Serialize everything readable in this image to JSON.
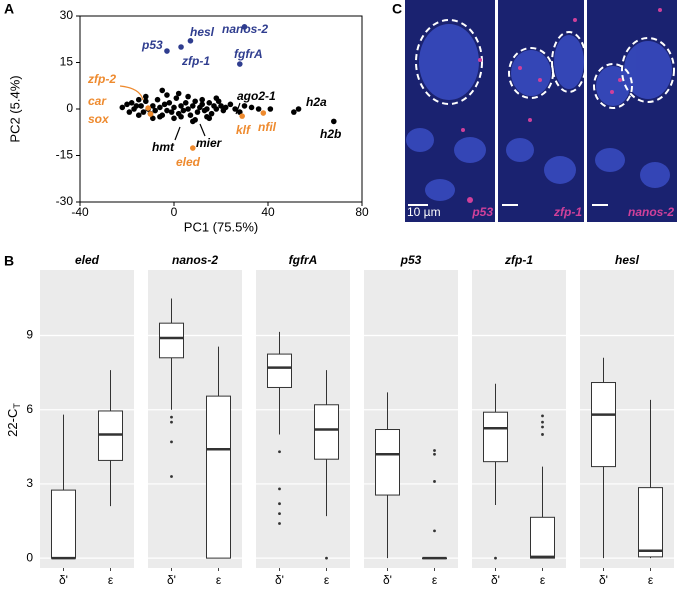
{
  "chart_data": [
    {
      "type": "scatter",
      "panel": "A",
      "xlabel": "PC1 (75.5%)",
      "ylabel": "PC2 (5.4%)",
      "xlim": [
        -40,
        80
      ],
      "ylim": [
        -30,
        30
      ],
      "xticks": [
        -40,
        0,
        40,
        80
      ],
      "yticks": [
        -30,
        -15,
        0,
        15,
        30
      ],
      "series": [
        {
          "color": "#000000",
          "x": [
            -22,
            -20,
            -19,
            -18,
            -17,
            -16,
            -15,
            -14,
            -13,
            -12,
            -11,
            -10,
            -9,
            -8,
            -7,
            -6,
            -5,
            -4,
            -3,
            -2,
            -1,
            0,
            1,
            2,
            3,
            4,
            5,
            6,
            7,
            8,
            9,
            10,
            11,
            12,
            13,
            14,
            15,
            16,
            17,
            18,
            19,
            20,
            21,
            22,
            24,
            26,
            28,
            30,
            33,
            36,
            -15,
            -12,
            -9,
            -6,
            -3,
            0,
            3,
            6,
            9,
            12,
            15,
            18,
            -5,
            2,
            8,
            14,
            41,
            51,
            53,
            68
          ],
          "y": [
            0.5,
            1.5,
            -1,
            2,
            0,
            1,
            -2,
            1,
            -1,
            2.5,
            0,
            -1.5,
            1,
            -0.5,
            3,
            0.5,
            -2,
            1.5,
            -0.5,
            2,
            -1,
            0.5,
            3.5,
            -1.5,
            1,
            -0.5,
            2,
            0,
            -2,
            1,
            2.5,
            -1,
            0.5,
            1.5,
            -0.5,
            0,
            2,
            -1.5,
            1,
            0,
            2.5,
            1,
            -0.5,
            0.5,
            1.5,
            0,
            -1,
            1,
            0.5,
            0,
            3,
            4,
            -3,
            -2.5,
            4.5,
            -3,
            -2.5,
            4,
            -3.5,
            3,
            -3,
            3.5,
            6,
            5,
            -4,
            -2.5,
            0,
            -1,
            0,
            -4
          ]
        },
        {
          "color": "#ee8a2e",
          "x": [
            -11,
            -10,
            29,
            38,
            8
          ],
          "y": [
            0.3,
            -1.6,
            -2.3,
            -1.3,
            -12.6
          ]
        },
        {
          "color": "#2f3d8f",
          "x": [
            -3,
            3,
            7,
            30,
            28
          ],
          "y": [
            18.7,
            20,
            22,
            26.5,
            14.5
          ]
        }
      ],
      "annotations": [
        {
          "text": "p53",
          "color": "#2f3d8f"
        },
        {
          "text": "hesl",
          "color": "#2f3d8f"
        },
        {
          "text": "nanos-2",
          "color": "#2f3d8f"
        },
        {
          "text": "zfp-1",
          "color": "#2f3d8f"
        },
        {
          "text": "fgfrA",
          "color": "#2f3d8f"
        },
        {
          "text": "zfp-2",
          "color": "#ee8a2e"
        },
        {
          "text": "car",
          "color": "#ee8a2e"
        },
        {
          "text": "sox",
          "color": "#ee8a2e"
        },
        {
          "text": "klf",
          "color": "#ee8a2e"
        },
        {
          "text": "nfil",
          "color": "#ee8a2e"
        },
        {
          "text": "eled",
          "color": "#ee8a2e"
        },
        {
          "text": "hmt",
          "color": "#000000"
        },
        {
          "text": "mier",
          "color": "#000000"
        },
        {
          "text": "ago2-1",
          "color": "#000000"
        },
        {
          "text": "h2a",
          "color": "#000000"
        },
        {
          "text": "h2b",
          "color": "#000000"
        }
      ]
    },
    {
      "type": "box",
      "panel": "B",
      "ylabel": "22-C",
      "ylabel_sub": "T",
      "ylim": [
        -0.4,
        11.65
      ],
      "yticks": [
        0,
        3,
        6,
        9
      ],
      "groups": [
        "δ'",
        "ε"
      ],
      "grid": true,
      "facets": [
        {
          "title": "eled",
          "boxes": [
            {
              "min": 0,
              "q1": 0,
              "median": 0,
              "q3": 2.75,
              "max": 5.8,
              "outliers": []
            },
            {
              "min": 2.1,
              "q1": 3.95,
              "median": 5.0,
              "q3": 5.95,
              "max": 7.6,
              "outliers": []
            }
          ]
        },
        {
          "title": "nanos-2",
          "boxes": [
            {
              "min": 6.0,
              "q1": 8.1,
              "median": 8.9,
              "q3": 9.5,
              "max": 10.5,
              "outliers": [
                5.7,
                5.5,
                4.7,
                3.3
              ]
            },
            {
              "min": 0,
              "q1": 0,
              "median": 4.4,
              "q3": 6.55,
              "max": 8.55,
              "outliers": []
            }
          ]
        },
        {
          "title": "fgfrA",
          "boxes": [
            {
              "min": 5.0,
              "q1": 6.9,
              "median": 7.7,
              "q3": 8.25,
              "max": 9.15,
              "outliers": [
                4.3,
                2.8,
                2.2,
                1.8,
                1.4
              ]
            },
            {
              "min": 1.7,
              "q1": 4.0,
              "median": 5.2,
              "q3": 6.2,
              "max": 7.6,
              "outliers": [
                0
              ]
            }
          ]
        },
        {
          "title": "p53",
          "boxes": [
            {
              "min": 0,
              "q1": 2.55,
              "median": 4.2,
              "q3": 5.2,
              "max": 6.7,
              "outliers": []
            },
            {
              "min": 0,
              "q1": 0,
              "median": 0,
              "q3": 0,
              "max": 0,
              "outliers": [
                4.35,
                4.2,
                3.1,
                1.1
              ]
            }
          ]
        },
        {
          "title": "zfp-1",
          "boxes": [
            {
              "min": 2.15,
              "q1": 3.9,
              "median": 5.25,
              "q3": 5.9,
              "max": 7.05,
              "outliers": [
                0
              ]
            },
            {
              "min": 0,
              "q1": 0,
              "median": 0.05,
              "q3": 1.65,
              "max": 3.7,
              "outliers": [
                5.75,
                5.5,
                5.3,
                5.0
              ]
            }
          ]
        },
        {
          "title": "hesl",
          "boxes": [
            {
              "min": 0,
              "q1": 3.7,
              "median": 5.8,
              "q3": 7.1,
              "max": 8.1,
              "outliers": []
            },
            {
              "min": 0,
              "q1": 0.05,
              "median": 0.3,
              "q3": 2.85,
              "max": 6.4,
              "outliers": []
            }
          ]
        }
      ]
    }
  ],
  "images": {
    "panel": "C",
    "scale": "10 µm",
    "labels": [
      "p53",
      "zfp-1",
      "nanos-2"
    ]
  }
}
